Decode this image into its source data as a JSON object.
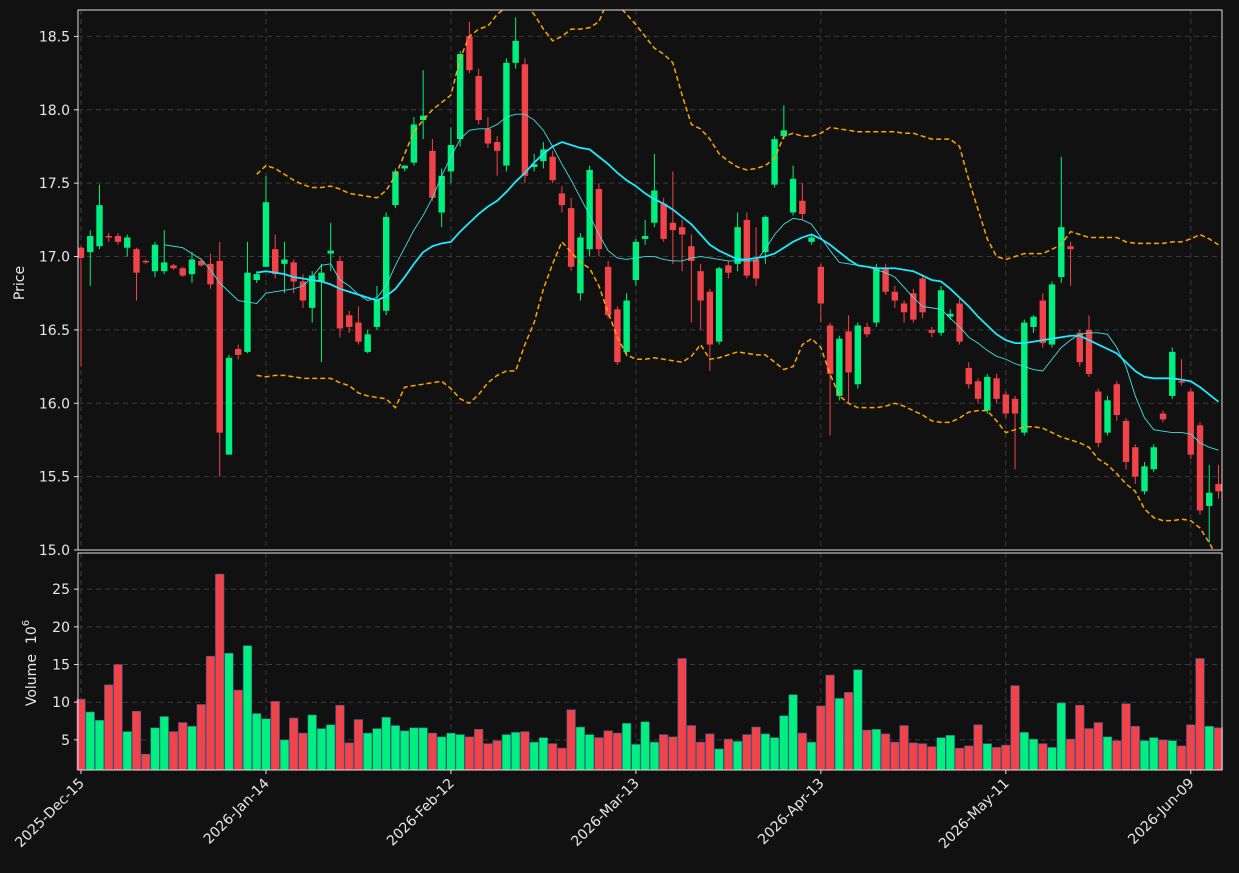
{
  "chart_data": {
    "type": "candlestick",
    "ylabel": "Price",
    "volume_ylabel": "Volume",
    "volume_scale_base": "10",
    "volume_scale_exponent": "6",
    "up_color": "#00f080",
    "down_color": "#f0444a",
    "grid": true,
    "categories": [
      "2025-Dec-15",
      null,
      null,
      null,
      null,
      null,
      null,
      null,
      null,
      null,
      null,
      null,
      null,
      null,
      null,
      null,
      null,
      null,
      null,
      null,
      "2026-Jan-14",
      null,
      null,
      null,
      null,
      null,
      null,
      null,
      null,
      null,
      null,
      null,
      null,
      null,
      null,
      null,
      null,
      null,
      null,
      null,
      "2026-Feb-12",
      null,
      null,
      null,
      null,
      null,
      null,
      null,
      null,
      null,
      null,
      null,
      null,
      null,
      null,
      null,
      null,
      null,
      null,
      null,
      "2026-Mar-13",
      null,
      null,
      null,
      null,
      null,
      null,
      null,
      null,
      null,
      null,
      null,
      null,
      null,
      null,
      null,
      null,
      null,
      null,
      null,
      "2026-Apr-13",
      null,
      null,
      null,
      null,
      null,
      null,
      null,
      null,
      null,
      null,
      null,
      null,
      null,
      null,
      null,
      null,
      null,
      null,
      null,
      "2026-May-11",
      null,
      null,
      null,
      null,
      null,
      null,
      null,
      null,
      null,
      null,
      null,
      null,
      null,
      null,
      null,
      null,
      null,
      null,
      null,
      "2026-Jun-09",
      null,
      null,
      null
    ],
    "open": [
      17.06,
      17.03,
      17.07,
      17.14,
      17.14,
      17.06,
      17.05,
      16.97,
      16.9,
      16.9,
      16.94,
      16.92,
      16.88,
      16.97,
      16.95,
      16.97,
      15.65,
      16.37,
      16.35,
      16.84,
      16.93,
      17.05,
      16.95,
      16.96,
      16.83,
      16.65,
      16.83,
      17.02,
      16.97,
      16.6,
      16.55,
      16.35,
      16.52,
      16.63,
      17.35,
      17.6,
      17.64,
      17.93,
      17.72,
      17.3,
      17.58,
      17.8,
      18.5,
      18.23,
      17.87,
      17.78,
      17.62,
      18.32,
      18.31,
      17.61,
      17.65,
      17.68,
      17.43,
      17.33,
      16.75,
      17.05,
      17.46,
      16.93,
      16.64,
      16.35,
      16.84,
      17.12,
      17.23,
      17.36,
      17.23,
      17.2,
      17.07,
      16.9,
      16.76,
      16.42,
      16.94,
      16.95,
      17.25,
      16.98,
      17.03,
      17.49,
      17.82,
      17.3,
      17.38,
      17.1,
      16.93,
      16.53,
      16.05,
      16.49,
      16.13,
      16.52,
      16.55,
      16.92,
      16.76,
      16.68,
      16.75,
      16.85,
      16.5,
      16.48,
      16.59,
      16.68,
      16.24,
      16.15,
      15.95,
      16.17,
      16.06,
      16.03,
      15.8,
      16.52,
      16.7,
      16.4,
      16.86,
      17.07,
      16.48,
      16.5,
      16.08,
      15.8,
      16.13,
      15.88,
      15.7,
      15.4,
      15.55,
      15.93,
      16.05,
      16.15,
      16.08,
      15.85,
      15.3,
      15.45
    ],
    "high": [
      17.07,
      17.18,
      17.49,
      17.16,
      17.16,
      17.15,
      17.06,
      16.98,
      17.1,
      17.18,
      16.95,
      16.93,
      17.03,
      16.99,
      17.02,
      17.1,
      16.33,
      16.4,
      17.1,
      16.9,
      17.55,
      17.15,
      17.1,
      16.98,
      16.88,
      16.9,
      16.95,
      17.23,
      17.0,
      16.63,
      16.66,
      16.5,
      16.8,
      17.3,
      17.6,
      17.62,
      17.95,
      18.27,
      17.8,
      17.6,
      17.88,
      18.4,
      18.6,
      18.28,
      17.95,
      17.82,
      18.35,
      18.63,
      18.35,
      17.7,
      17.78,
      17.72,
      17.48,
      17.4,
      17.16,
      17.62,
      17.5,
      16.97,
      16.66,
      16.75,
      17.12,
      17.25,
      17.7,
      17.4,
      17.58,
      17.25,
      17.15,
      16.95,
      16.78,
      16.93,
      16.97,
      17.3,
      17.3,
      17.2,
      17.28,
      17.82,
      18.03,
      17.62,
      17.5,
      17.15,
      16.95,
      16.55,
      16.46,
      16.6,
      16.55,
      16.55,
      16.95,
      16.95,
      16.8,
      16.7,
      16.78,
      16.88,
      16.52,
      16.8,
      16.64,
      16.72,
      16.28,
      16.17,
      16.2,
      16.2,
      16.08,
      16.05,
      16.57,
      16.6,
      16.75,
      16.83,
      17.68,
      17.1,
      16.5,
      16.6,
      16.1,
      16.05,
      16.15,
      15.9,
      15.72,
      15.6,
      15.72,
      15.95,
      16.38,
      16.3,
      16.1,
      15.87,
      15.58,
      15.58
    ],
    "low": [
      16.25,
      16.8,
      17.05,
      17.1,
      17.08,
      17.0,
      16.7,
      16.95,
      16.86,
      16.88,
      16.91,
      16.86,
      16.82,
      16.93,
      16.78,
      15.5,
      15.65,
      16.3,
      16.34,
      16.82,
      16.93,
      16.85,
      16.75,
      16.75,
      16.65,
      16.55,
      16.28,
      16.9,
      16.45,
      16.48,
      16.4,
      16.34,
      16.5,
      16.6,
      17.33,
      17.58,
      17.62,
      17.8,
      17.38,
      17.2,
      17.5,
      17.75,
      18.25,
      17.9,
      17.74,
      17.55,
      17.58,
      18.28,
      17.5,
      17.58,
      17.6,
      17.5,
      17.3,
      16.9,
      16.7,
      17.0,
      17.0,
      16.58,
      16.26,
      16.32,
      16.8,
      17.08,
      17.2,
      17.1,
      16.95,
      16.9,
      16.55,
      16.5,
      16.22,
      16.4,
      16.85,
      16.9,
      16.85,
      16.8,
      16.95,
      17.47,
      17.8,
      17.28,
      17.25,
      17.08,
      16.55,
      15.78,
      16.02,
      16.0,
      16.1,
      16.45,
      16.52,
      16.74,
      16.65,
      16.55,
      16.55,
      16.58,
      16.45,
      16.46,
      16.57,
      16.4,
      16.1,
      16.0,
      15.93,
      16.0,
      15.9,
      15.55,
      15.78,
      16.48,
      16.38,
      16.38,
      16.82,
      16.8,
      16.25,
      16.18,
      15.7,
      15.78,
      15.88,
      15.55,
      15.45,
      15.38,
      15.53,
      15.87,
      16.03,
      16.12,
      15.62,
      15.24,
      15.05,
      15.35
    ],
    "close": [
      16.99,
      17.14,
      17.35,
      17.13,
      17.1,
      17.13,
      16.89,
      16.96,
      17.08,
      16.96,
      16.92,
      16.87,
      16.98,
      16.94,
      16.81,
      15.8,
      16.31,
      16.33,
      16.89,
      16.88,
      17.37,
      16.88,
      16.98,
      16.83,
      16.7,
      16.87,
      16.89,
      17.04,
      16.51,
      16.52,
      16.42,
      16.47,
      16.7,
      17.27,
      17.58,
      17.62,
      17.9,
      17.96,
      17.4,
      17.55,
      17.76,
      18.38,
      18.27,
      17.93,
      17.77,
      17.72,
      18.32,
      18.47,
      17.55,
      17.63,
      17.73,
      17.52,
      17.35,
      16.93,
      17.13,
      17.59,
      17.05,
      16.6,
      16.28,
      16.7,
      17.1,
      17.14,
      17.45,
      17.12,
      17.18,
      17.15,
      16.97,
      16.7,
      16.4,
      16.92,
      16.89,
      17.2,
      16.87,
      16.85,
      17.27,
      17.8,
      17.86,
      17.53,
      17.29,
      17.13,
      16.68,
      16.2,
      16.44,
      16.21,
      16.53,
      16.47,
      16.92,
      16.76,
      16.7,
      16.62,
      16.57,
      16.62,
      16.48,
      16.77,
      16.61,
      16.42,
      16.13,
      16.03,
      16.18,
      16.03,
      15.93,
      15.93,
      16.55,
      16.59,
      16.41,
      16.81,
      17.2,
      17.05,
      16.28,
      16.2,
      15.73,
      16.02,
      15.92,
      15.6,
      15.5,
      15.57,
      15.7,
      15.89,
      16.35,
      16.14,
      15.65,
      15.27,
      15.39,
      15.4
    ],
    "volume": [
      10.4,
      8.7,
      7.6,
      12.3,
      15.0,
      6.1,
      8.8,
      3.1,
      6.6,
      8.1,
      6.1,
      7.3,
      6.8,
      9.7,
      16.1,
      27.0,
      16.5,
      11.6,
      17.5,
      8.5,
      7.8,
      10.1,
      5.0,
      7.9,
      5.9,
      8.3,
      6.5,
      7.0,
      9.6,
      4.6,
      7.7,
      5.9,
      6.5,
      8.0,
      6.9,
      6.2,
      6.6,
      6.6,
      5.9,
      5.4,
      5.9,
      5.7,
      5.4,
      6.4,
      4.5,
      4.9,
      5.7,
      6.0,
      6.1,
      4.7,
      5.3,
      4.5,
      3.9,
      9.0,
      6.7,
      5.7,
      5.3,
      6.2,
      5.9,
      7.2,
      4.4,
      7.4,
      4.7,
      5.7,
      5.4,
      15.8,
      6.9,
      4.7,
      5.8,
      3.8,
      5.1,
      4.8,
      5.7,
      6.7,
      5.8,
      5.3,
      8.2,
      11.0,
      5.9,
      4.7,
      9.5,
      13.6,
      10.5,
      11.3,
      14.3,
      6.3,
      6.4,
      5.8,
      4.7,
      6.9,
      4.6,
      4.5,
      4.1,
      5.3,
      5.6,
      3.9,
      4.2,
      7.0,
      4.5,
      4.0,
      4.3,
      12.2,
      6.0,
      5.1,
      4.5,
      4.0,
      9.9,
      5.1,
      9.6,
      6.5,
      7.3,
      5.4,
      4.9,
      9.8,
      6.8,
      4.9,
      5.3,
      5.0,
      4.9,
      4.2,
      7.0,
      15.8,
      6.8,
      6.6
    ],
    "overlays": [
      {
        "color": "#40e0e0",
        "style": "thin",
        "values": [
          null,
          null,
          null,
          null,
          null,
          null,
          null,
          null,
          null,
          17.08,
          17.07,
          17.06,
          17.02,
          16.98,
          16.91,
          16.82,
          16.76,
          16.7,
          16.69,
          16.68,
          16.75,
          16.76,
          16.77,
          16.78,
          16.8,
          16.86,
          16.94,
          16.95,
          16.84,
          16.8,
          16.74,
          16.7,
          16.72,
          16.8,
          16.94,
          17.06,
          17.18,
          17.28,
          17.4,
          17.55,
          17.68,
          17.8,
          17.86,
          17.87,
          17.87,
          17.9,
          17.95,
          17.97,
          17.97,
          17.93,
          17.86,
          17.75,
          17.63,
          17.52,
          17.4,
          17.28,
          17.15,
          17.04,
          16.99,
          16.98,
          16.99,
          17.0,
          17.0,
          16.98,
          16.97,
          16.97,
          16.99,
          17.0,
          16.99,
          16.98,
          16.97,
          16.97,
          16.97,
          16.97,
          17.05,
          17.15,
          17.22,
          17.26,
          17.25,
          17.22,
          17.13,
          17.04,
          16.96,
          16.95,
          16.94,
          16.93,
          16.91,
          16.89,
          16.86,
          16.79,
          16.72,
          16.66,
          16.65,
          16.64,
          16.58,
          16.52,
          16.45,
          16.41,
          16.36,
          16.32,
          16.3,
          16.27,
          16.25,
          16.23,
          16.22,
          16.3,
          16.38,
          16.43,
          16.47,
          16.48,
          16.48,
          16.47,
          16.38,
          16.25,
          16.05,
          15.9,
          15.82,
          15.81,
          15.8,
          15.8,
          15.79,
          15.73,
          15.7,
          15.68
        ]
      },
      {
        "color": "#20e8ff",
        "style": "thick",
        "values": [
          null,
          null,
          null,
          null,
          null,
          null,
          null,
          null,
          null,
          null,
          null,
          null,
          null,
          null,
          null,
          null,
          null,
          null,
          null,
          16.89,
          16.9,
          16.89,
          16.88,
          16.86,
          16.85,
          16.84,
          16.83,
          16.81,
          16.78,
          16.76,
          16.74,
          16.72,
          16.7,
          16.73,
          16.78,
          16.86,
          16.95,
          17.03,
          17.07,
          17.09,
          17.1,
          17.17,
          17.23,
          17.29,
          17.34,
          17.38,
          17.44,
          17.51,
          17.57,
          17.64,
          17.7,
          17.75,
          17.78,
          17.76,
          17.74,
          17.73,
          17.68,
          17.63,
          17.57,
          17.52,
          17.48,
          17.43,
          17.39,
          17.36,
          17.32,
          17.27,
          17.22,
          17.15,
          17.08,
          17.04,
          17.01,
          16.98,
          16.98,
          16.99,
          17.0,
          17.02,
          17.06,
          17.1,
          17.13,
          17.15,
          17.12,
          17.08,
          17.03,
          16.98,
          16.94,
          16.93,
          16.92,
          16.92,
          16.92,
          16.91,
          16.9,
          16.87,
          16.84,
          16.83,
          16.78,
          16.72,
          16.66,
          16.59,
          16.53,
          16.47,
          16.43,
          16.41,
          16.41,
          16.42,
          16.43,
          16.44,
          16.45,
          16.46,
          16.46,
          16.43,
          16.4,
          16.37,
          16.34,
          16.28,
          16.22,
          16.18,
          16.17,
          16.17,
          16.17,
          16.16,
          16.15,
          16.11,
          16.06,
          16.01
        ]
      },
      {
        "color": "#ffa500",
        "style": "dashed",
        "values": [
          null,
          null,
          null,
          null,
          null,
          null,
          null,
          null,
          null,
          null,
          null,
          null,
          null,
          null,
          null,
          null,
          null,
          null,
          null,
          17.56,
          17.62,
          17.6,
          17.56,
          17.52,
          17.49,
          17.47,
          17.47,
          17.48,
          17.46,
          17.43,
          17.42,
          17.41,
          17.4,
          17.45,
          17.55,
          17.7,
          17.85,
          17.93,
          18.0,
          18.05,
          18.1,
          18.35,
          18.5,
          18.55,
          18.57,
          18.65,
          18.7,
          18.72,
          18.72,
          18.65,
          18.55,
          18.47,
          18.5,
          18.55,
          18.55,
          18.56,
          18.6,
          18.75,
          18.72,
          18.65,
          18.58,
          18.5,
          18.42,
          18.38,
          18.32,
          18.1,
          17.9,
          17.87,
          17.8,
          17.7,
          17.65,
          17.61,
          17.59,
          17.6,
          17.62,
          17.67,
          17.82,
          17.84,
          17.82,
          17.82,
          17.84,
          17.88,
          17.87,
          17.86,
          17.85,
          17.85,
          17.85,
          17.85,
          17.85,
          17.84,
          17.84,
          17.82,
          17.8,
          17.8,
          17.8,
          17.75,
          17.52,
          17.32,
          17.12,
          17.0,
          16.98,
          17.0,
          17.02,
          17.02,
          17.02,
          17.05,
          17.08,
          17.17,
          17.15,
          17.13,
          17.13,
          17.13,
          17.13,
          17.1,
          17.09,
          17.09,
          17.09,
          17.09,
          17.1,
          17.1,
          17.12,
          17.15,
          17.12,
          17.08
        ]
      },
      {
        "color": "#ffa500",
        "style": "dashed",
        "values": [
          null,
          null,
          null,
          null,
          null,
          null,
          null,
          null,
          null,
          null,
          null,
          null,
          null,
          null,
          null,
          null,
          null,
          null,
          null,
          16.19,
          16.18,
          16.19,
          16.19,
          16.18,
          16.17,
          16.17,
          16.17,
          16.17,
          16.14,
          16.12,
          16.07,
          16.05,
          16.04,
          16.03,
          15.97,
          16.11,
          16.12,
          16.13,
          16.14,
          16.15,
          16.1,
          16.03,
          16.0,
          16.06,
          16.14,
          16.19,
          16.22,
          16.22,
          16.4,
          16.55,
          16.78,
          16.95,
          17.1,
          17.03,
          16.96,
          16.92,
          16.8,
          16.62,
          16.45,
          16.33,
          16.3,
          16.3,
          16.31,
          16.3,
          16.29,
          16.28,
          16.32,
          16.4,
          16.3,
          16.31,
          16.33,
          16.35,
          16.34,
          16.33,
          16.33,
          16.28,
          16.23,
          16.25,
          16.4,
          16.44,
          16.38,
          16.2,
          16.05,
          16.0,
          15.97,
          15.97,
          15.97,
          15.98,
          16.0,
          15.98,
          15.95,
          15.92,
          15.88,
          15.87,
          15.87,
          15.9,
          15.94,
          15.95,
          15.95,
          15.88,
          15.8,
          15.82,
          15.84,
          15.84,
          15.83,
          15.8,
          15.77,
          15.75,
          15.73,
          15.7,
          15.62,
          15.58,
          15.52,
          15.45,
          15.4,
          15.28,
          15.22,
          15.2,
          15.2,
          15.21,
          15.2,
          15.15,
          15.05,
          14.93
        ]
      }
    ],
    "ylim": [
      15.0,
      18.68
    ],
    "yticks": [
      {
        "value": 15,
        "label": "15.0"
      },
      15.5,
      {
        "value": 16,
        "label": "16.0"
      },
      16.5,
      {
        "value": 17,
        "label": "17.0"
      },
      17.5,
      {
        "value": 18,
        "label": "18.0"
      },
      18.5
    ],
    "volume_ylim": [
      1.0,
      29.8
    ],
    "volume_yticks": [
      5,
      10,
      15,
      20,
      25
    ]
  }
}
